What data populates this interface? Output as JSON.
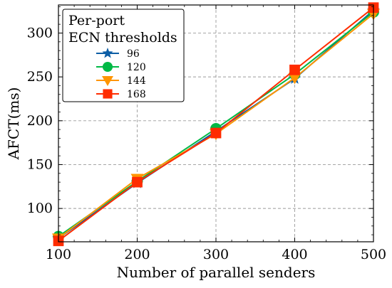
{
  "chart_data": {
    "type": "line",
    "title": "",
    "xlabel": "Number of parallel senders",
    "ylabel": "AFCT(ms)",
    "xlim": [
      100,
      500
    ],
    "ylim": [
      62,
      332
    ],
    "x_ticks": [
      100,
      200,
      300,
      400,
      500
    ],
    "y_ticks": [
      100,
      150,
      200,
      250,
      300
    ],
    "grid": true,
    "grid_style": "dashed",
    "legend": {
      "title_lines": [
        "Per-port",
        "ECN thresholds"
      ],
      "placement": "top-left"
    },
    "x": [
      100,
      200,
      300,
      400,
      500
    ],
    "series": [
      {
        "name": "96",
        "color": "#0c5da5",
        "marker": "star",
        "values": [
          66,
          129,
          188,
          248,
          326
        ]
      },
      {
        "name": "120",
        "color": "#00b945",
        "marker": "circle",
        "values": [
          68,
          131,
          191,
          253,
          324
        ]
      },
      {
        "name": "144",
        "color": "#ff9500",
        "marker": "triangle-down",
        "values": [
          66,
          134,
          185,
          249,
          322
        ]
      },
      {
        "name": "168",
        "color": "#ff2c00",
        "marker": "square",
        "values": [
          63,
          130,
          186,
          258,
          329
        ]
      }
    ]
  }
}
